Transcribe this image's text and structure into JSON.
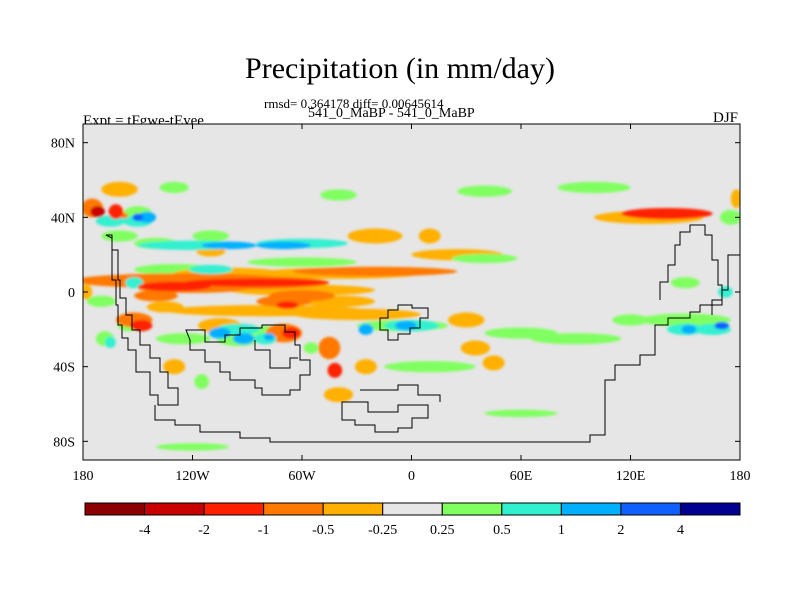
{
  "chart_data": {
    "type": "heatmap",
    "title": "Precipitation (in mm/day)",
    "stats": "rmsd= 0.364178 diff= 0.00645614",
    "subtitle": "541_0_MaBP - 541_0_MaBP",
    "left_label": "Expt = tFgwe-tEyee",
    "season_label": "DJF",
    "xlim": [
      -180,
      180
    ],
    "ylim": [
      -90,
      90
    ],
    "x_ticks": [
      {
        "value": -180,
        "label": "180"
      },
      {
        "value": -120,
        "label": "120W"
      },
      {
        "value": -60,
        "label": "60W"
      },
      {
        "value": 0,
        "label": "0"
      },
      {
        "value": 60,
        "label": "60E"
      },
      {
        "value": 120,
        "label": "120E"
      },
      {
        "value": 180,
        "label": "180"
      }
    ],
    "y_ticks": [
      {
        "value": 80,
        "label": "80N"
      },
      {
        "value": 40,
        "label": "40N"
      },
      {
        "value": 0,
        "label": "0"
      },
      {
        "value": -40,
        "label": "40S"
      },
      {
        "value": -80,
        "label": "80S"
      }
    ],
    "background_color": "#e6e6e6",
    "colorbar": {
      "colors": [
        "#8b0000",
        "#c80000",
        "#ff2000",
        "#ff7800",
        "#ffb000",
        "#e6e6e6",
        "#80ff60",
        "#30f0d0",
        "#00b0ff",
        "#1060ff",
        "#000090"
      ],
      "labels": [
        "-4",
        "-2",
        "-1",
        "-0.5",
        "-0.25",
        "0.25",
        "0.5",
        "1",
        "2",
        "4"
      ]
    },
    "anomalies": [
      {
        "lon": -100,
        "lat": 10,
        "rx": 30,
        "ry": 3,
        "value": -0.35
      },
      {
        "lon": -40,
        "lat": 10,
        "rx": 45,
        "ry": 3,
        "value": -0.35
      },
      {
        "lon": -20,
        "lat": 11,
        "rx": 45,
        "ry": 2.5,
        "value": -0.7
      },
      {
        "lon": -120,
        "lat": 2,
        "rx": 30,
        "ry": 2.5,
        "value": -0.7
      },
      {
        "lon": -60,
        "lat": 1,
        "rx": 40,
        "ry": 3,
        "value": -0.35
      },
      {
        "lon": -140,
        "lat": -2,
        "rx": 12,
        "ry": 3,
        "value": -0.7
      },
      {
        "lon": -80,
        "lat": -10,
        "rx": 55,
        "ry": 3,
        "value": -0.3
      },
      {
        "lon": -30,
        "lat": -12,
        "rx": 35,
        "ry": 3,
        "value": -0.3
      },
      {
        "lon": -105,
        "lat": -18,
        "rx": 12,
        "ry": 4,
        "value": -0.35
      },
      {
        "lon": -152,
        "lat": -15,
        "rx": 10,
        "ry": 4,
        "value": -0.7
      },
      {
        "lon": -148,
        "lat": -18,
        "rx": 6,
        "ry": 3,
        "value": -1.5
      },
      {
        "lon": -135,
        "lat": -8,
        "rx": 10,
        "ry": 3,
        "value": -0.35
      },
      {
        "lon": -70,
        "lat": -22,
        "rx": 10,
        "ry": 5,
        "value": -0.7
      },
      {
        "lon": -66,
        "lat": -22,
        "rx": 5,
        "ry": 3,
        "value": -1.5
      },
      {
        "lon": -45,
        "lat": -30,
        "rx": 6,
        "ry": 6,
        "value": -0.7
      },
      {
        "lon": -42,
        "lat": -42,
        "rx": 4,
        "ry": 4,
        "value": -1.5
      },
      {
        "lon": -40,
        "lat": -55,
        "rx": 8,
        "ry": 4,
        "value": -0.3
      },
      {
        "lon": -25,
        "lat": -40,
        "rx": 6,
        "ry": 4,
        "value": -0.3
      },
      {
        "lon": 35,
        "lat": -30,
        "rx": 8,
        "ry": 4,
        "value": -0.3
      },
      {
        "lon": -20,
        "lat": 30,
        "rx": 15,
        "ry": 4,
        "value": -0.3
      },
      {
        "lon": 10,
        "lat": 30,
        "rx": 6,
        "ry": 4,
        "value": -0.3
      },
      {
        "lon": 25,
        "lat": 20,
        "rx": 25,
        "ry": 3,
        "value": -0.3
      },
      {
        "lon": -175,
        "lat": 45,
        "rx": 6,
        "ry": 5,
        "value": -0.7
      },
      {
        "lon": -172,
        "lat": 43,
        "rx": 4,
        "ry": 3,
        "value": -3
      },
      {
        "lon": -162,
        "lat": 43,
        "rx": 4,
        "ry": 4,
        "value": -1.5
      },
      {
        "lon": -160,
        "lat": 40,
        "rx": 5,
        "ry": 3,
        "value": -0.7
      },
      {
        "lon": -178,
        "lat": 0,
        "rx": 3,
        "ry": 4,
        "value": -0.3
      },
      {
        "lon": -110,
        "lat": 22,
        "rx": 8,
        "ry": 3,
        "value": -0.3
      },
      {
        "lon": -40,
        "lat": -5,
        "rx": 20,
        "ry": 3,
        "value": -0.3
      },
      {
        "lon": 30,
        "lat": -15,
        "rx": 10,
        "ry": 4,
        "value": -0.3
      },
      {
        "lon": 45,
        "lat": -38,
        "rx": 6,
        "ry": 4,
        "value": -0.3
      },
      {
        "lon": -130,
        "lat": -40,
        "rx": 6,
        "ry": 4,
        "value": -0.3
      },
      {
        "lon": 130,
        "lat": 40,
        "rx": 30,
        "ry": 3.5,
        "value": -0.5
      },
      {
        "lon": 140,
        "lat": 42,
        "rx": 25,
        "ry": 3,
        "value": -1.5
      },
      {
        "lon": 178,
        "lat": 50,
        "rx": 3,
        "ry": 5,
        "value": -0.5
      },
      {
        "lon": -160,
        "lat": 55,
        "rx": 10,
        "ry": 4,
        "value": -0.3
      },
      {
        "lon": -110,
        "lat": 30,
        "rx": 10,
        "ry": 3,
        "value": 0.3
      },
      {
        "lon": -130,
        "lat": 12,
        "rx": 22,
        "ry": 3,
        "value": 0.3
      },
      {
        "lon": -110,
        "lat": 12,
        "rx": 12,
        "ry": 2.5,
        "value": 0.7
      },
      {
        "lon": -60,
        "lat": 16,
        "rx": 30,
        "ry": 2.5,
        "value": 0.3
      },
      {
        "lon": -160,
        "lat": 30,
        "rx": 10,
        "ry": 3,
        "value": 0.3
      },
      {
        "lon": -140,
        "lat": 26,
        "rx": 12,
        "ry": 3,
        "value": 0.3
      },
      {
        "lon": -130,
        "lat": 56,
        "rx": 8,
        "ry": 3,
        "value": 0.3
      },
      {
        "lon": -40,
        "lat": 52,
        "rx": 10,
        "ry": 3,
        "value": 0.3
      },
      {
        "lon": 40,
        "lat": 54,
        "rx": 15,
        "ry": 3,
        "value": 0.3
      },
      {
        "lon": 100,
        "lat": 56,
        "rx": 20,
        "ry": 3,
        "value": 0.3
      },
      {
        "lon": 40,
        "lat": 18,
        "rx": 18,
        "ry": 2.5,
        "value": 0.3
      },
      {
        "lon": -170,
        "lat": -5,
        "rx": 8,
        "ry": 3,
        "value": 0.3
      },
      {
        "lon": -168,
        "lat": -25,
        "rx": 5,
        "ry": 4,
        "value": 0.3
      },
      {
        "lon": -165,
        "lat": -27,
        "rx": 3,
        "ry": 3,
        "value": 0.7
      },
      {
        "lon": -125,
        "lat": -25,
        "rx": 15,
        "ry": 3,
        "value": 0.3
      },
      {
        "lon": -95,
        "lat": -25,
        "rx": 12,
        "ry": 4,
        "value": 0.3
      },
      {
        "lon": -92,
        "lat": -25,
        "rx": 6,
        "ry": 3,
        "value": 1.2
      },
      {
        "lon": -80,
        "lat": -22,
        "rx": 6,
        "ry": 4,
        "value": 0.3
      },
      {
        "lon": -55,
        "lat": -30,
        "rx": 4,
        "ry": 3,
        "value": 0.3
      },
      {
        "lon": 10,
        "lat": -40,
        "rx": 25,
        "ry": 3,
        "value": 0.3
      },
      {
        "lon": 60,
        "lat": -22,
        "rx": 20,
        "ry": 3,
        "value": 0.3
      },
      {
        "lon": 90,
        "lat": -25,
        "rx": 25,
        "ry": 3,
        "value": 0.3
      },
      {
        "lon": 120,
        "lat": -15,
        "rx": 10,
        "ry": 3,
        "value": 0.3
      },
      {
        "lon": 150,
        "lat": -15,
        "rx": 25,
        "ry": 3.5,
        "value": 0.3
      },
      {
        "lon": 150,
        "lat": -20,
        "rx": 10,
        "ry": 3,
        "value": 0.7
      },
      {
        "lon": 152,
        "lat": -20,
        "rx": 4,
        "ry": 2.5,
        "value": 1.2
      },
      {
        "lon": -5,
        "lat": -18,
        "rx": 25,
        "ry": 3,
        "value": 0.3
      },
      {
        "lon": -3,
        "lat": -18,
        "rx": 6,
        "ry": 2.5,
        "value": 1.2
      },
      {
        "lon": -115,
        "lat": -48,
        "rx": 4,
        "ry": 4,
        "value": 0.3
      },
      {
        "lon": 60,
        "lat": -65,
        "rx": 20,
        "ry": 2,
        "value": 0.3
      },
      {
        "lon": -120,
        "lat": -83,
        "rx": 20,
        "ry": 2,
        "value": 0.3
      },
      {
        "lon": 150,
        "lat": 5,
        "rx": 8,
        "ry": 3,
        "value": 0.3
      },
      {
        "lon": 175,
        "lat": 40,
        "rx": 6,
        "ry": 4,
        "value": 0.3
      },
      {
        "lon": -150,
        "lat": 42,
        "rx": 8,
        "ry": 4,
        "value": 0.3
      },
      {
        "lon": -165,
        "lat": 38,
        "rx": 8,
        "ry": 3,
        "value": 0.7
      },
      {
        "lon": -150,
        "lat": 38,
        "rx": 8,
        "ry": 3,
        "value": 0.7
      },
      {
        "lon": -145,
        "lat": 40,
        "rx": 5,
        "ry": 3,
        "value": 1.2
      },
      {
        "lon": -150,
        "lat": 40,
        "rx": 3,
        "ry": 2,
        "value": 2.5
      },
      {
        "lon": -120,
        "lat": 25,
        "rx": 30,
        "ry": 2.5,
        "value": 0.7
      },
      {
        "lon": -60,
        "lat": 26,
        "rx": 25,
        "ry": 2.5,
        "value": 0.7
      },
      {
        "lon": -100,
        "lat": 25,
        "rx": 15,
        "ry": 2,
        "value": 1.2
      },
      {
        "lon": -70,
        "lat": 25,
        "rx": 15,
        "ry": 2,
        "value": 1.2
      },
      {
        "lon": -95,
        "lat": -20,
        "rx": 12,
        "ry": 3,
        "value": 0.7
      },
      {
        "lon": -105,
        "lat": -22,
        "rx": 6,
        "ry": 3,
        "value": 1.2
      },
      {
        "lon": -80,
        "lat": -25,
        "rx": 6,
        "ry": 3,
        "value": 0.7
      },
      {
        "lon": -78,
        "lat": -24,
        "rx": 3,
        "ry": 2,
        "value": 1.2
      },
      {
        "lon": -25,
        "lat": -20,
        "rx": 4,
        "ry": 3,
        "value": 1.2
      },
      {
        "lon": 0,
        "lat": -18,
        "rx": 15,
        "ry": 3,
        "value": 0.7
      },
      {
        "lon": 165,
        "lat": -20,
        "rx": 10,
        "ry": 3,
        "value": 0.7
      },
      {
        "lon": 170,
        "lat": -18,
        "rx": 4,
        "ry": 2,
        "value": 2.5
      },
      {
        "lon": -152,
        "lat": 5,
        "rx": 5,
        "ry": 3,
        "value": 0.7
      },
      {
        "lon": 172,
        "lat": 0,
        "rx": 4,
        "ry": 3,
        "value": 0.7
      },
      {
        "lon": -155,
        "lat": -18,
        "rx": 6,
        "ry": 3,
        "value": 0.3
      },
      {
        "lon": -125,
        "lat": 6,
        "rx": 60,
        "ry": 4,
        "value": -0.6
      },
      {
        "lon": -90,
        "lat": 5,
        "rx": 45,
        "ry": 3.5,
        "value": -0.6
      },
      {
        "lon": -85,
        "lat": 5,
        "rx": 40,
        "ry": 2.2,
        "value": -1.5
      },
      {
        "lon": -130,
        "lat": 3,
        "rx": 20,
        "ry": 2.5,
        "value": -1.5
      },
      {
        "lon": -60,
        "lat": -2,
        "rx": 18,
        "ry": 3,
        "value": -0.7
      },
      {
        "lon": -70,
        "lat": -5,
        "rx": 15,
        "ry": 3,
        "value": -0.7
      },
      {
        "lon": -68,
        "lat": -7,
        "rx": 6,
        "ry": 2,
        "value": -1.5
      }
    ]
  }
}
